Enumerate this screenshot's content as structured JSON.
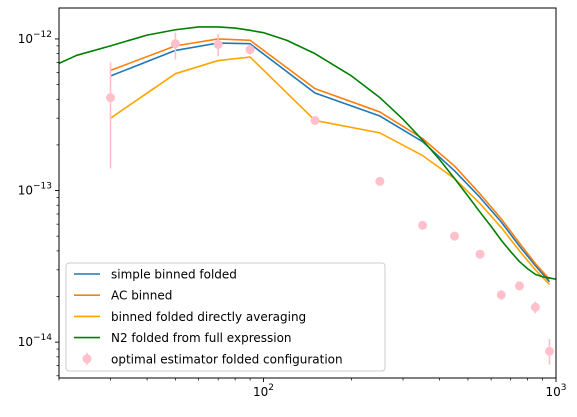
{
  "chart_data": {
    "type": "line",
    "xscale": "log",
    "yscale": "log",
    "xlim": [
      20,
      1000
    ],
    "ylim": [
      5.8e-15,
      1.6e-12
    ],
    "grid": false,
    "legend_position": "lower-left",
    "x_ticks": [
      {
        "value": 100,
        "label": "10",
        "exp": "2"
      },
      {
        "value": 1000,
        "label": "10",
        "exp": "3"
      }
    ],
    "y_ticks": [
      {
        "value": 1e-14,
        "label": "10",
        "exp": "−14"
      },
      {
        "value": 1e-13,
        "label": "10",
        "exp": "−13"
      },
      {
        "value": 1e-12,
        "label": "10",
        "exp": "−12"
      }
    ],
    "series": [
      {
        "name": "simple binned folded",
        "type": "line",
        "color": "#1f77b4",
        "x": [
          30,
          50,
          70,
          90,
          150,
          250,
          350,
          450,
          550,
          650,
          750,
          850,
          950
        ],
        "y": [
          5.7e-13,
          8.4e-13,
          9.4e-13,
          9.3e-13,
          4.4e-13,
          3.1e-13,
          2.1e-13,
          1.35e-13,
          9e-14,
          6.2e-14,
          4.3e-14,
          3.2e-14,
          2.5e-14
        ]
      },
      {
        "name": "AC binned",
        "type": "line",
        "color": "#ff7f0e",
        "x": [
          30,
          50,
          70,
          90,
          150,
          250,
          350,
          450,
          550,
          650,
          750,
          850,
          950
        ],
        "y": [
          6.2e-13,
          9e-13,
          1e-12,
          9.8e-13,
          4.7e-13,
          3.3e-13,
          2.2e-13,
          1.45e-13,
          9.5e-14,
          6.5e-14,
          4.5e-14,
          3.3e-14,
          2.6e-14
        ]
      },
      {
        "name": "binned folded directly averaging",
        "type": "line",
        "color": "#ffa500",
        "x": [
          30,
          50,
          70,
          90,
          150,
          250,
          350,
          450,
          550,
          650,
          750,
          850,
          950
        ],
        "y": [
          3e-13,
          5.9e-13,
          7.2e-13,
          7.6e-13,
          2.9e-13,
          2.4e-13,
          1.7e-13,
          1.2e-13,
          8.2e-14,
          5.7e-14,
          4e-14,
          3e-14,
          2.4e-14
        ]
      },
      {
        "name": "N2 folded from full expression",
        "type": "line",
        "color": "#008000",
        "x": [
          20,
          23,
          30,
          40,
          50,
          60,
          70,
          80,
          90,
          100,
          120,
          150,
          200,
          250,
          300,
          350,
          400,
          450,
          500,
          550,
          600,
          650,
          700,
          750,
          800,
          850,
          900,
          950,
          1000
        ],
        "y": [
          6.9e-13,
          7.8e-13,
          9e-13,
          1.06e-12,
          1.15e-12,
          1.2e-12,
          1.2e-12,
          1.18e-12,
          1.14e-12,
          1.1e-12,
          9.8e-13,
          8e-13,
          5.7e-13,
          4.1e-13,
          2.95e-13,
          2.15e-13,
          1.6e-13,
          1.2e-13,
          9.2e-14,
          7.2e-14,
          5.8e-14,
          4.7e-14,
          3.95e-14,
          3.4e-14,
          3.05e-14,
          2.8e-14,
          2.7e-14,
          2.65e-14,
          2.6e-14
        ]
      },
      {
        "name": "optimal estimator folded configuration",
        "type": "errorbar",
        "color": "#ffc0cb",
        "x": [
          30,
          50,
          70,
          90,
          150,
          250,
          350,
          450,
          550,
          650,
          750,
          850,
          950
        ],
        "y": [
          4.1e-13,
          9.3e-13,
          9.2e-13,
          8.5e-13,
          2.9e-13,
          1.15e-13,
          5.9e-14,
          5e-14,
          3.8e-14,
          2.05e-14,
          2.35e-14,
          1.7e-14,
          8.7e-15
        ],
        "yerr_low": [
          2.7e-13,
          2e-13,
          1.5e-13,
          6e-14,
          0,
          0,
          0,
          0,
          0,
          1.5e-15,
          0,
          1.5e-15,
          1.6e-15
        ],
        "yerr_high": [
          2.9e-13,
          1.7e-13,
          1.6e-13,
          7e-14,
          0,
          0,
          0,
          0,
          0,
          1.5e-15,
          0,
          1.5e-15,
          1.8e-15
        ]
      }
    ]
  }
}
